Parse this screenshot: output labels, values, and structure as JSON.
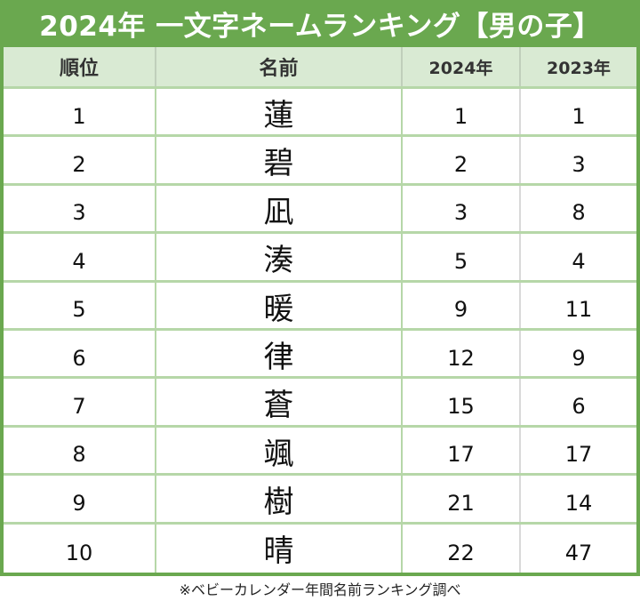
{
  "title": "2024年 一文字ネームランキング【男の子】",
  "table": {
    "headers": [
      "順位",
      "名前",
      "2024年",
      "2023年"
    ],
    "rows": [
      {
        "rank": "1",
        "name": "蓮",
        "y2024": "1",
        "y2023": "1"
      },
      {
        "rank": "2",
        "name": "碧",
        "y2024": "2",
        "y2023": "3"
      },
      {
        "rank": "3",
        "name": "凪",
        "y2024": "3",
        "y2023": "8"
      },
      {
        "rank": "4",
        "name": "湊",
        "y2024": "5",
        "y2023": "4"
      },
      {
        "rank": "5",
        "name": "暖",
        "y2024": "9",
        "y2023": "11"
      },
      {
        "rank": "6",
        "name": "律",
        "y2024": "12",
        "y2023": "9"
      },
      {
        "rank": "7",
        "name": "蒼",
        "y2024": "15",
        "y2023": "6"
      },
      {
        "rank": "8",
        "name": "颯",
        "y2024": "17",
        "y2023": "17"
      },
      {
        "rank": "9",
        "name": "樹",
        "y2024": "21",
        "y2023": "14"
      },
      {
        "rank": "10",
        "name": "晴",
        "y2024": "22",
        "y2023": "47"
      }
    ]
  },
  "footnote": "※ベビーカレンダー年間名前ランキング調べ",
  "colors": {
    "frame": "#6aa84f",
    "header_bg": "#d9ead3",
    "grid": "#b6d7a8"
  }
}
